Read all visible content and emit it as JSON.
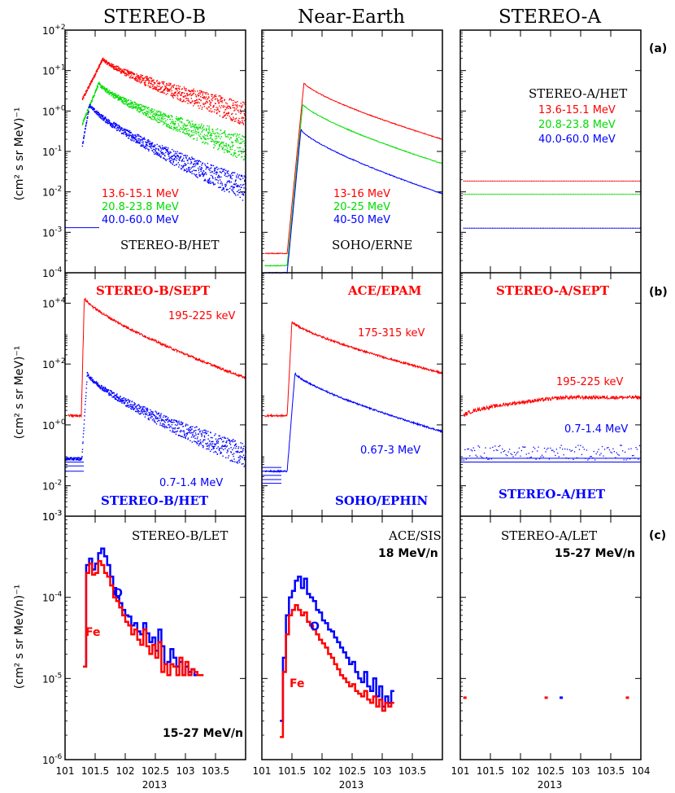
{
  "columns": [
    "STEREO-B",
    "Near-Earth",
    "STEREO-A"
  ],
  "rows": [
    {
      "label": "(a)",
      "ylabel": "(cm² s sr MeV)⁻¹"
    },
    {
      "label": "(b)",
      "ylabel": "(cm² s sr MeV)⁻¹"
    },
    {
      "label": "(c)",
      "ylabel": "(cm² s sr MeV/n)⁻¹"
    }
  ],
  "colors": {
    "red": "#ff0000",
    "green": "#00dd00",
    "blue": "#0000ff",
    "black": "#000000"
  },
  "chart_data": {
    "type": "line",
    "x_label": "2013",
    "xlim": [
      101,
      104
    ],
    "x_ticks_sb": [
      "101",
      "101.5",
      "102",
      "102.5",
      "103",
      "103.5"
    ],
    "x_ticks_ne": [
      "101",
      "101.5",
      "102",
      "102.5",
      "103",
      "103.5"
    ],
    "x_ticks_sa": [
      "101",
      "101.5",
      "102",
      "102.5",
      "103",
      "103.5",
      "104"
    ],
    "panels": {
      "a": {
        "ylim": [
          0.0001,
          100
        ],
        "yticks": [
          {
            "exp": -4,
            "label": "10",
            "sup": "-4"
          },
          {
            "exp": -3,
            "label": "10",
            "sup": "-3"
          },
          {
            "exp": -2,
            "label": "10",
            "sup": "-2"
          },
          {
            "exp": -1,
            "label": "10",
            "sup": "-1"
          },
          {
            "exp": 0,
            "label": "10",
            "sup": "+0"
          },
          {
            "exp": 1,
            "label": "10",
            "sup": "+1"
          },
          {
            "exp": 2,
            "label": "10",
            "sup": "+2"
          }
        ],
        "stereo_b": {
          "instrument": "STEREO-B/HET",
          "series": [
            {
              "name": "13.6-15.1 MeV",
              "color": "red",
              "onset": 101.28,
              "peak_x": 101.62,
              "peak": 20,
              "end": 0.9
            },
            {
              "name": "20.8-23.8 MeV",
              "color": "green",
              "onset": 101.28,
              "peak_x": 101.55,
              "peak": 5,
              "end": 0.12
            },
            {
              "name": "40.0-60.0 MeV",
              "color": "blue",
              "onset": 101.28,
              "peak_x": 101.4,
              "peak": 1.5,
              "end": 0.012
            }
          ]
        },
        "near_earth": {
          "instrument": "SOHO/ERNE",
          "series": [
            {
              "name": "13-16 MeV",
              "color": "red",
              "pre": 0.0003,
              "onset": 101.42,
              "peak_x": 101.7,
              "peak": 5,
              "end": 0.2
            },
            {
              "name": "20-25 MeV",
              "color": "green",
              "pre": 0.00015,
              "onset": 101.42,
              "peak_x": 101.68,
              "peak": 1.5,
              "end": 0.05
            },
            {
              "name": "40-50 MeV",
              "color": "blue",
              "pre": 0.0001,
              "onset": 101.42,
              "peak_x": 101.65,
              "peak": 0.35,
              "end": 0.009
            }
          ]
        },
        "stereo_a": {
          "instrument": "STEREO-A/HET",
          "series": [
            {
              "name": "13.6-15.1 MeV",
              "color": "red",
              "level": 0.019
            },
            {
              "name": "20.8-23.8 MeV",
              "color": "green",
              "level": 0.009
            },
            {
              "name": "40.0-60.0 MeV",
              "color": "blue",
              "level": 0.0013
            }
          ]
        }
      },
      "b": {
        "ylim": [
          0.001,
          100000
        ],
        "yticks": [
          {
            "exp": -3,
            "label": "10",
            "sup": "-3"
          },
          {
            "exp": -2,
            "label": "10",
            "sup": "-2"
          },
          {
            "exp": 0,
            "label": "10",
            "sup": "+0"
          },
          {
            "exp": 2,
            "label": "10",
            "sup": "+2"
          },
          {
            "exp": 4,
            "label": "10",
            "sup": "+4"
          }
        ],
        "stereo_b": {
          "electron_instrument": "STEREO-B/SEPT",
          "proton_instrument": "STEREO-B/HET",
          "series": [
            {
              "name": "195-225 keV",
              "color": "red",
              "pre": 2,
              "onset": 101.27,
              "peak_x": 101.32,
              "peak": 15000,
              "end": 35
            },
            {
              "name": "0.7-1.4 MeV",
              "color": "blue",
              "pre": 0.08,
              "onset": 101.27,
              "peak_x": 101.36,
              "peak": 50,
              "end": 0.1
            }
          ]
        },
        "near_earth": {
          "electron_instrument": "ACE/EPAM",
          "proton_instrument": "SOHO/EPHIN",
          "series": [
            {
              "name": "175-315 keV",
              "color": "red",
              "pre": 2,
              "onset": 101.42,
              "peak_x": 101.5,
              "peak": 2500,
              "end": 50
            },
            {
              "name": "0.67-3 MeV",
              "color": "blue",
              "pre": 0.03,
              "onset": 101.42,
              "peak_x": 101.55,
              "peak": 50,
              "end": 0.6
            }
          ]
        },
        "stereo_a": {
          "electron_instrument": "STEREO-A/SEPT",
          "proton_instrument": "STEREO-A/HET",
          "series": [
            {
              "name": "195-225 keV",
              "color": "red",
              "start": 1.8,
              "end": 8
            },
            {
              "name": "0.7-1.4 MeV",
              "color": "blue",
              "level": 0.1
            }
          ]
        }
      },
      "c": {
        "ylim": [
          1e-06,
          0.001
        ],
        "yticks": [
          {
            "exp": -6,
            "label": "10",
            "sup": "-6"
          },
          {
            "exp": -5,
            "label": "10",
            "sup": "-5"
          },
          {
            "exp": -4,
            "label": "10",
            "sup": "-4"
          },
          {
            "exp": -3,
            "label": "10",
            "sup": "-3"
          }
        ],
        "stereo_b": {
          "instrument": "STEREO-B/LET",
          "energy": "15-27 MeV/n",
          "series": [
            {
              "name": "O",
              "color": "blue",
              "x": [
                101.3,
                101.35,
                101.4,
                101.45,
                101.5,
                101.55,
                101.6,
                101.65,
                101.7,
                101.75,
                101.8,
                101.85,
                101.9,
                101.95,
                102.0,
                102.05,
                102.1,
                102.15,
                102.2,
                102.25,
                102.3,
                102.35,
                102.4,
                102.45,
                102.5,
                102.55,
                102.6,
                102.65,
                102.7,
                102.75,
                102.8,
                102.85,
                102.9,
                102.95,
                103.0,
                103.05,
                103.1,
                103.15,
                103.2,
                103.25
              ],
              "y": [
                1.4e-05,
                0.00025,
                0.0003,
                0.00022,
                0.00026,
                0.00035,
                0.0004,
                0.00032,
                0.00025,
                0.00018,
                0.00013,
                0.0001,
                8.5e-05,
                7e-05,
                6e-05,
                5.8e-05,
                4.5e-05,
                4.8e-05,
                3.8e-05,
                3.5e-05,
                4.8e-05,
                3.6e-05,
                2.8e-05,
                3.2e-05,
                2.2e-05,
                4e-05,
                2.5e-05,
                1.5e-05,
                1.6e-05,
                2.3e-05,
                1.8e-05,
                1.4e-05,
                1.6e-05,
                1.1e-05,
                1.4e-05,
                1.2e-05,
                1.3e-05,
                1.1e-05,
                1.1e-05,
                1.1e-05
              ]
            },
            {
              "name": "Fe",
              "color": "red",
              "x": [
                101.3,
                101.35,
                101.4,
                101.45,
                101.5,
                101.55,
                101.6,
                101.65,
                101.7,
                101.75,
                101.8,
                101.85,
                101.9,
                101.95,
                102.0,
                102.05,
                102.1,
                102.15,
                102.2,
                102.25,
                102.3,
                102.35,
                102.4,
                102.45,
                102.5,
                102.55,
                102.6,
                102.65,
                102.7,
                102.75,
                102.8,
                102.85,
                102.9,
                102.95,
                103.0,
                103.05,
                103.1,
                103.15,
                103.2,
                103.25
              ],
              "y": [
                1.4e-05,
                0.0002,
                0.00026,
                0.00019,
                0.0002,
                0.00028,
                0.00025,
                0.0002,
                0.00018,
                0.00014,
                0.0001,
                9e-05,
                7.5e-05,
                6e-05,
                5e-05,
                4.5e-05,
                3.5e-05,
                4e-05,
                3e-05,
                2.6e-05,
                4e-05,
                2.5e-05,
                2e-05,
                2.6e-05,
                1.8e-05,
                2.8e-05,
                1.2e-05,
                1.5e-05,
                1.1e-05,
                1.5e-05,
                1.4e-05,
                1.1e-05,
                1.8e-05,
                1.1e-05,
                1.6e-05,
                1.1e-05,
                1.3e-05,
                1.2e-05,
                1.1e-05,
                1.1e-05
              ]
            }
          ]
        },
        "near_earth": {
          "instrument": "ACE/SIS",
          "energy": "18 MeV/n",
          "series": [
            {
              "name": "O",
              "color": "blue",
              "x": [
                101.3,
                101.35,
                101.4,
                101.45,
                101.5,
                101.55,
                101.6,
                101.65,
                101.7,
                101.75,
                101.8,
                101.85,
                101.9,
                101.95,
                102.0,
                102.05,
                102.1,
                102.15,
                102.2,
                102.25,
                102.3,
                102.35,
                102.4,
                102.45,
                102.5,
                102.55,
                102.6,
                102.65,
                102.7,
                102.75,
                102.8,
                102.85,
                102.9,
                102.95,
                103.0,
                103.05,
                103.1,
                103.15
              ],
              "y": [
                3e-06,
                1.8e-05,
                6e-05,
                0.0001,
                0.00012,
                0.00016,
                0.00018,
                0.00013,
                0.00017,
                0.00011,
                0.0001,
                9e-05,
                7e-05,
                6.5e-05,
                5.2e-05,
                4.8e-05,
                4e-05,
                3.8e-05,
                3.2e-05,
                2.8e-05,
                2.4e-05,
                2.1e-05,
                1.8e-05,
                1.5e-05,
                1.6e-05,
                1.2e-05,
                1e-05,
                9e-06,
                1.2e-05,
                8e-06,
                7e-06,
                1e-05,
                6e-06,
                8e-06,
                4.5e-06,
                6e-06,
                5e-06,
                7e-06
              ]
            },
            {
              "name": "Fe",
              "color": "red",
              "x": [
                101.3,
                101.35,
                101.4,
                101.45,
                101.5,
                101.55,
                101.6,
                101.65,
                101.7,
                101.75,
                101.8,
                101.85,
                101.9,
                101.95,
                102.0,
                102.05,
                102.1,
                102.15,
                102.2,
                102.25,
                102.3,
                102.35,
                102.4,
                102.45,
                102.5,
                102.55,
                102.6,
                102.65,
                102.7,
                102.75,
                102.8,
                102.85,
                102.9,
                102.95,
                103.0,
                103.05,
                103.1,
                103.15
              ],
              "y": [
                1.9e-06,
                1.2e-05,
                3.5e-05,
                6e-05,
                7e-05,
                8e-05,
                7e-05,
                6e-05,
                6.5e-05,
                5e-05,
                4.5e-05,
                4e-05,
                3.5e-05,
                3e-05,
                2.7e-05,
                2.4e-05,
                2e-05,
                1.8e-05,
                1.5e-05,
                1.3e-05,
                1.1e-05,
                1e-05,
                9e-06,
                8e-06,
                8.5e-06,
                7e-06,
                6.5e-06,
                6e-06,
                7e-06,
                5.5e-06,
                5e-06,
                6e-06,
                4.5e-06,
                5.5e-06,
                4e-06,
                5e-06,
                4.5e-06,
                5e-06
              ]
            }
          ]
        },
        "stereo_a": {
          "instrument": "STEREO-A/LET",
          "energy": "15-27 MeV/n",
          "series": [
            {
              "name": "Fe",
              "color": "red",
              "x": [
                101.05,
                102.4,
                103.75
              ],
              "y": [
                5.8e-06,
                5.8e-06,
                5.8e-06
              ]
            },
            {
              "name": "O",
              "color": "blue",
              "x": [
                102.65
              ],
              "y": [
                5.8e-06
              ]
            }
          ]
        }
      }
    }
  }
}
